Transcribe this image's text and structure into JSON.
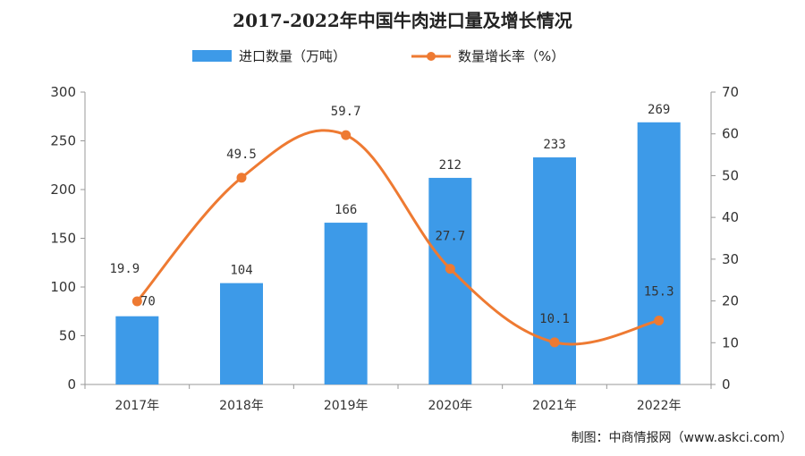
{
  "colors": {
    "bar": "#3d9ae8",
    "line": "#ee7a32",
    "axis": "#999999"
  },
  "chart_data": {
    "type": "bar",
    "title": "2017-2022年中国牛肉进口量及增长情况",
    "categories": [
      "2017年",
      "2018年",
      "2019年",
      "2020年",
      "2021年",
      "2022年"
    ],
    "series": [
      {
        "name": "进口数量（万吨）",
        "type": "bar",
        "axis": "left",
        "values": [
          70,
          104,
          166,
          212,
          233,
          269
        ]
      },
      {
        "name": "数量增长率（%）",
        "type": "line",
        "axis": "right",
        "values": [
          19.9,
          49.5,
          59.7,
          27.7,
          10.1,
          15.3
        ]
      }
    ],
    "y_left": {
      "ylim": [
        0,
        300
      ],
      "ticks": [
        0,
        50,
        100,
        150,
        200,
        250,
        300
      ]
    },
    "y_right": {
      "ylim": [
        0,
        70
      ],
      "ticks": [
        0,
        10,
        20,
        30,
        40,
        50,
        60,
        70
      ]
    },
    "legend": "top-center",
    "grid": false
  },
  "credit": "制图：中商情报网（www.askci.com）"
}
